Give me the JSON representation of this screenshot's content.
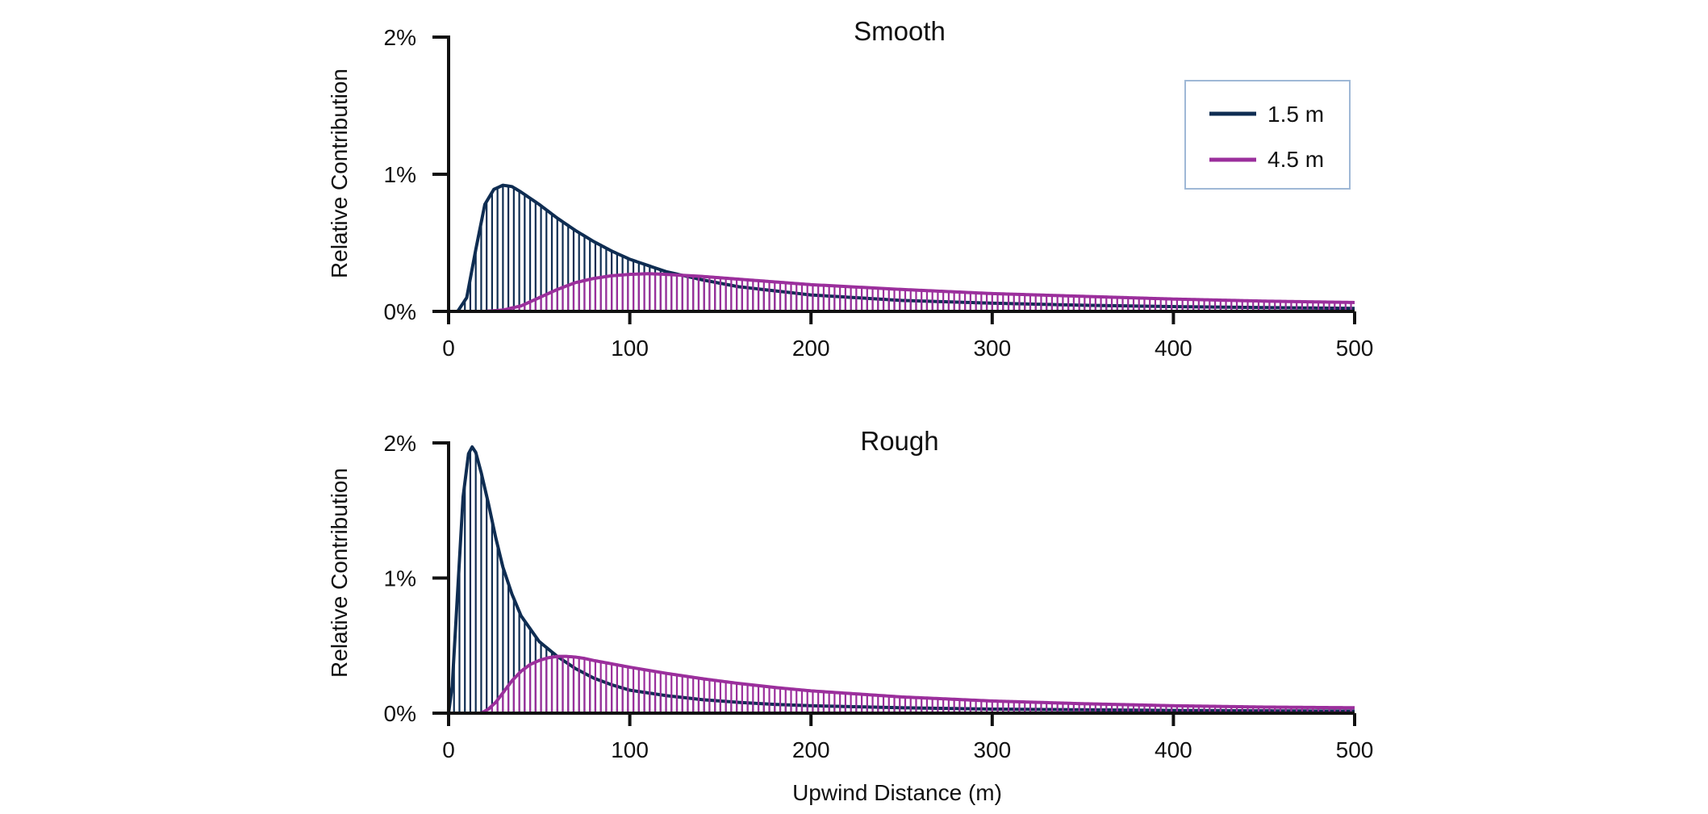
{
  "colors": {
    "series_1_5": "#0f2d52",
    "series_4_5": "#9b2f9c",
    "axis": "#111111",
    "legend_border": "#9fb8d6"
  },
  "legend": {
    "items": [
      {
        "label": "1.5 m",
        "color": "#0f2d52"
      },
      {
        "label": "4.5 m",
        "color": "#9b2f9c"
      }
    ]
  },
  "chart_data": [
    {
      "type": "area",
      "title": "Smooth",
      "ylabel": "Relative Contribution",
      "xlabel": "",
      "xlim": [
        0,
        500
      ],
      "ylim": [
        0,
        2
      ],
      "x_ticks": [
        0,
        100,
        200,
        300,
        400,
        500
      ],
      "x_tick_labels": [
        "0",
        "100",
        "200",
        "300",
        "400",
        "500"
      ],
      "y_ticks": [
        0,
        1,
        2
      ],
      "y_tick_labels": [
        "0%",
        "1%",
        "2%"
      ],
      "legend_position": "top-right",
      "series": [
        {
          "name": "1.5 m",
          "x": [
            0,
            5,
            10,
            15,
            20,
            25,
            30,
            35,
            40,
            50,
            60,
            70,
            80,
            90,
            100,
            120,
            140,
            160,
            180,
            200,
            250,
            300,
            350,
            400,
            450,
            500
          ],
          "y": [
            0,
            0.0,
            0.1,
            0.45,
            0.78,
            0.89,
            0.92,
            0.91,
            0.87,
            0.78,
            0.68,
            0.59,
            0.51,
            0.44,
            0.38,
            0.29,
            0.23,
            0.18,
            0.15,
            0.12,
            0.08,
            0.06,
            0.045,
            0.035,
            0.028,
            0.022
          ]
        },
        {
          "name": "4.5 m",
          "x": [
            0,
            20,
            30,
            40,
            50,
            60,
            70,
            80,
            90,
            100,
            110,
            120,
            140,
            160,
            180,
            200,
            250,
            300,
            350,
            400,
            450,
            500
          ],
          "y": [
            0,
            0.0,
            0.01,
            0.04,
            0.1,
            0.16,
            0.21,
            0.24,
            0.26,
            0.27,
            0.275,
            0.27,
            0.255,
            0.235,
            0.215,
            0.195,
            0.16,
            0.13,
            0.11,
            0.09,
            0.075,
            0.065
          ]
        }
      ]
    },
    {
      "type": "area",
      "title": "Rough",
      "ylabel": "Relative Contribution",
      "xlabel": "Upwind Distance (m)",
      "xlim": [
        0,
        500
      ],
      "ylim": [
        0,
        2
      ],
      "x_ticks": [
        0,
        100,
        200,
        300,
        400,
        500
      ],
      "x_tick_labels": [
        "0",
        "100",
        "200",
        "300",
        "400",
        "500"
      ],
      "y_ticks": [
        0,
        1,
        2
      ],
      "y_tick_labels": [
        "0%",
        "1%",
        "2%"
      ],
      "series": [
        {
          "name": "1.5 m",
          "x": [
            0,
            2,
            5,
            8,
            11,
            13,
            15,
            18,
            22,
            26,
            30,
            35,
            40,
            50,
            60,
            70,
            80,
            90,
            100,
            120,
            140,
            160,
            180,
            200,
            250,
            300,
            350,
            400,
            450,
            500
          ],
          "y": [
            0,
            0.2,
            0.9,
            1.6,
            1.92,
            1.97,
            1.93,
            1.78,
            1.55,
            1.3,
            1.08,
            0.88,
            0.72,
            0.53,
            0.42,
            0.33,
            0.26,
            0.21,
            0.17,
            0.13,
            0.1,
            0.08,
            0.065,
            0.055,
            0.04,
            0.03,
            0.025,
            0.02,
            0.017,
            0.015
          ]
        },
        {
          "name": "4.5 m",
          "x": [
            0,
            18,
            22,
            26,
            30,
            35,
            40,
            45,
            50,
            55,
            60,
            65,
            70,
            75,
            80,
            90,
            100,
            120,
            140,
            160,
            180,
            200,
            250,
            300,
            350,
            400,
            450,
            500
          ],
          "y": [
            0,
            0.0,
            0.03,
            0.08,
            0.15,
            0.24,
            0.31,
            0.36,
            0.39,
            0.41,
            0.42,
            0.42,
            0.415,
            0.405,
            0.39,
            0.365,
            0.34,
            0.295,
            0.255,
            0.22,
            0.19,
            0.165,
            0.12,
            0.09,
            0.07,
            0.055,
            0.045,
            0.04
          ]
        }
      ]
    }
  ]
}
